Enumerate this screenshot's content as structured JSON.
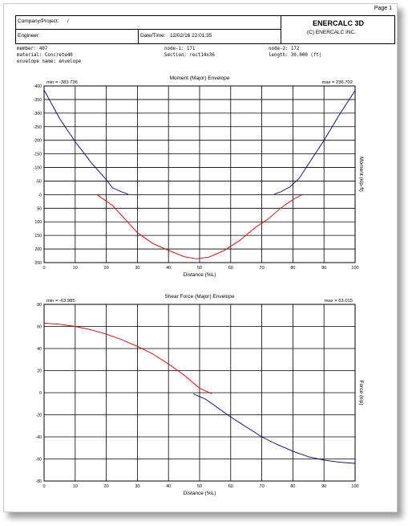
{
  "page": {
    "label": "Page 1"
  },
  "header": {
    "company_label": "Company/Project:",
    "company_value": "/",
    "engineer_label": "Engineer:",
    "datetime_label": "Date/Time:",
    "datetime_value": "12/02/16 22:01:35",
    "brand": "ENERCALC 3D",
    "copyright": "(C) ENERCALC INC."
  },
  "info": {
    "member": "member: 407",
    "material": "material: Concrete40",
    "envelope": "envelope name: envelope",
    "node1": "node-1: 171",
    "section": "Section: rect14x36",
    "node2": "node-2: 172",
    "length": "length: 30.000 (ft)"
  },
  "colors": {
    "red_series": "#cc0000",
    "blue_series": "#00006e",
    "grid": "#000000"
  },
  "chart_data": [
    {
      "type": "line",
      "title": "Moment (Major) Envelope",
      "xlabel": "Distance (%L)",
      "ylabel": "Moment (kip-ft)",
      "min_label": "min = -383.736",
      "max_label": "max = 236.702",
      "xlim": [
        0,
        100
      ],
      "ylim": [
        -400,
        250
      ],
      "inverted_y": true,
      "x_ticks": [
        0,
        10,
        20,
        30,
        40,
        50,
        60,
        70,
        80,
        90,
        100
      ],
      "y_ticks": [
        -400,
        -350,
        -300,
        -250,
        -200,
        -150,
        -100,
        -50,
        0,
        50,
        100,
        150,
        200,
        250
      ],
      "y_tick_labels": [
        "-400",
        "-350",
        "-300",
        "-250",
        "-200",
        "-150",
        "-100",
        "-50",
        "-0",
        "50",
        "100",
        "150",
        "200",
        "250"
      ],
      "grid": true,
      "series": [
        {
          "color": "#00006e",
          "x": [
            0,
            5,
            10,
            15,
            20,
            22,
            25,
            27
          ],
          "y": [
            -385,
            -280,
            -195,
            -120,
            -55,
            -25,
            -10,
            -2
          ]
        },
        {
          "color": "#00006e",
          "x": [
            74,
            76,
            79,
            82,
            86,
            90,
            95,
            100
          ],
          "y": [
            -2,
            -10,
            -28,
            -60,
            -130,
            -200,
            -295,
            -383
          ]
        },
        {
          "color": "#cc0000",
          "x": [
            17,
            22,
            26,
            30,
            35,
            40,
            45,
            49,
            53,
            58,
            63,
            68,
            72,
            76,
            80,
            83
          ],
          "y": [
            0,
            40,
            90,
            140,
            180,
            205,
            228,
            236,
            230,
            205,
            168,
            120,
            90,
            50,
            18,
            0
          ]
        }
      ]
    },
    {
      "type": "line",
      "title": "Shear Force (Major) Envelope",
      "xlabel": "Distance (%L)",
      "ylabel": "Force (kip)",
      "min_label": "min = -63.985",
      "max_label": "max = 63.015",
      "xlim": [
        0,
        100
      ],
      "ylim": [
        -80,
        80
      ],
      "x_ticks": [
        0,
        10,
        20,
        30,
        40,
        50,
        60,
        70,
        80,
        90,
        100
      ],
      "y_ticks": [
        -80,
        -60,
        -40,
        -20,
        0,
        20,
        40,
        60,
        80
      ],
      "grid": true,
      "series": [
        {
          "color": "#cc0000",
          "x": [
            0,
            5,
            10,
            15,
            20,
            25,
            30,
            35,
            40,
            45,
            50,
            54
          ],
          "y": [
            63,
            62,
            60,
            57,
            53,
            48,
            42,
            35,
            26,
            16,
            4,
            -1
          ]
        },
        {
          "color": "#00006e",
          "x": [
            48,
            52,
            56,
            60,
            65,
            70,
            75,
            80,
            85,
            90,
            95,
            100
          ],
          "y": [
            -1,
            -6,
            -14,
            -22,
            -31,
            -40,
            -47,
            -53,
            -58,
            -61,
            -63,
            -64
          ]
        }
      ]
    }
  ]
}
